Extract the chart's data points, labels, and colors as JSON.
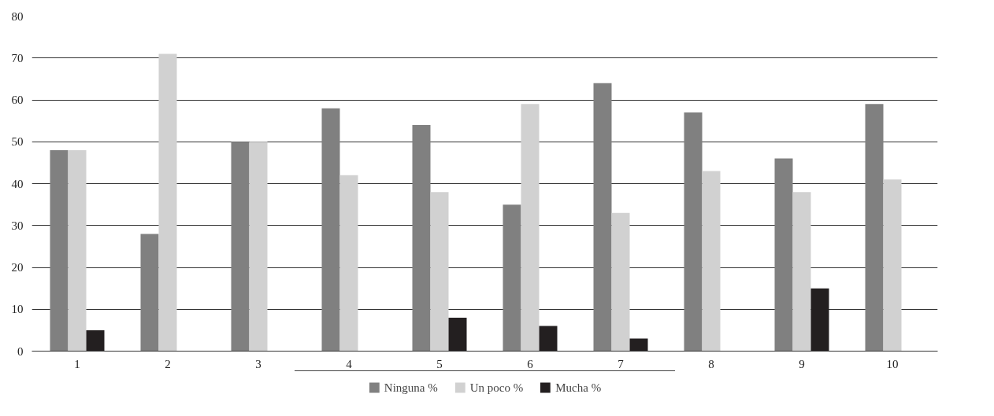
{
  "chart_data": {
    "type": "bar",
    "categories": [
      "1",
      "2",
      "3",
      "4",
      "5",
      "6",
      "7",
      "8",
      "9",
      "10"
    ],
    "series": [
      {
        "name": "Ninguna %",
        "color": "#808080",
        "values": [
          48,
          28,
          50,
          58,
          54,
          35,
          64,
          57,
          46,
          59
        ]
      },
      {
        "name": "Un poco %",
        "color": "#d1d1d1",
        "values": [
          48,
          71,
          50,
          42,
          38,
          59,
          33,
          43,
          38,
          41
        ]
      },
      {
        "name": "Mucha %",
        "color": "#231f20",
        "values": [
          5,
          null,
          null,
          null,
          8,
          6,
          3,
          null,
          15,
          null
        ]
      }
    ],
    "ylim": [
      0,
      80
    ],
    "yticks": [
      0,
      10,
      20,
      30,
      40,
      50,
      60,
      70,
      80
    ],
    "grid": "y",
    "legend": "bottom"
  }
}
